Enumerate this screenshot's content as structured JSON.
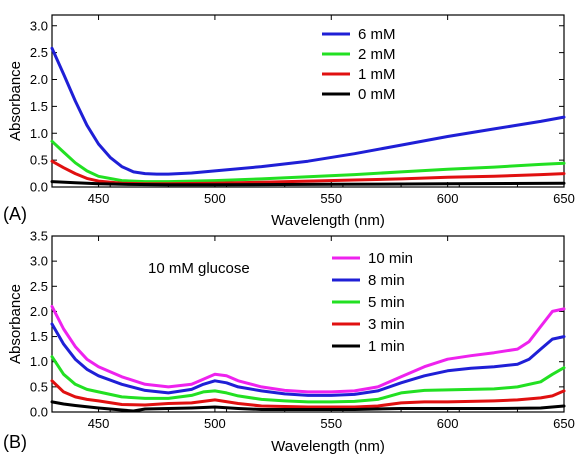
{
  "chart_data": [
    {
      "type": "line",
      "panel_label": "(A)",
      "xlabel": "Wavelength (nm)",
      "ylabel": "Absorbance",
      "xlim": [
        430,
        650
      ],
      "ylim": [
        0,
        3.2
      ],
      "xticks": [
        450,
        500,
        550,
        600,
        650
      ],
      "yticks": [
        0.0,
        0.5,
        1.0,
        1.5,
        2.0,
        2.5,
        3.0
      ],
      "ytick_labels": [
        "0.0",
        "0.5",
        "1.0",
        "1.5",
        "2.0",
        "2.5",
        "3.0"
      ],
      "legend_position": "top-right",
      "series": [
        {
          "name": "6 mM",
          "color": "#1f1fd6",
          "x": [
            430,
            435,
            440,
            445,
            450,
            455,
            460,
            465,
            470,
            475,
            480,
            490,
            500,
            520,
            540,
            560,
            580,
            600,
            620,
            640,
            650
          ],
          "y": [
            2.58,
            2.1,
            1.6,
            1.15,
            0.8,
            0.55,
            0.38,
            0.28,
            0.25,
            0.24,
            0.24,
            0.26,
            0.3,
            0.38,
            0.48,
            0.62,
            0.78,
            0.94,
            1.08,
            1.22,
            1.3
          ]
        },
        {
          "name": "2 mM",
          "color": "#22e022",
          "x": [
            430,
            435,
            440,
            445,
            450,
            460,
            470,
            480,
            500,
            520,
            540,
            560,
            580,
            600,
            620,
            640,
            650
          ],
          "y": [
            0.85,
            0.65,
            0.45,
            0.3,
            0.2,
            0.12,
            0.1,
            0.1,
            0.12,
            0.15,
            0.19,
            0.23,
            0.28,
            0.33,
            0.37,
            0.42,
            0.44
          ]
        },
        {
          "name": "1 mM",
          "color": "#e01010",
          "x": [
            430,
            435,
            440,
            445,
            450,
            460,
            470,
            480,
            500,
            520,
            540,
            560,
            580,
            600,
            620,
            640,
            650
          ],
          "y": [
            0.48,
            0.36,
            0.25,
            0.16,
            0.11,
            0.07,
            0.06,
            0.06,
            0.07,
            0.09,
            0.11,
            0.13,
            0.15,
            0.18,
            0.2,
            0.23,
            0.25
          ]
        },
        {
          "name": "0 mM",
          "color": "#000000",
          "x": [
            430,
            440,
            450,
            460,
            480,
            500,
            550,
            600,
            650
          ],
          "y": [
            0.1,
            0.08,
            0.06,
            0.05,
            0.04,
            0.04,
            0.05,
            0.06,
            0.07
          ]
        }
      ]
    },
    {
      "type": "line",
      "panel_label": "(B)",
      "annotation": "10 mM glucose",
      "xlabel": "Wavelength (nm)",
      "ylabel": "Absorbance",
      "xlim": [
        430,
        650
      ],
      "ylim": [
        0,
        3.5
      ],
      "xticks": [
        450,
        500,
        550,
        600,
        650
      ],
      "yticks": [
        0.0,
        0.5,
        1.0,
        1.5,
        2.0,
        2.5,
        3.0,
        3.5
      ],
      "ytick_labels": [
        "0.0",
        "0.5",
        "1.0",
        "1.5",
        "2.0",
        "2.5",
        "3.0",
        "3.5"
      ],
      "legend_position": "top-right",
      "series": [
        {
          "name": "10 min",
          "color": "#ee22ee",
          "x": [
            430,
            435,
            440,
            445,
            450,
            460,
            470,
            480,
            490,
            495,
            500,
            505,
            510,
            520,
            530,
            540,
            550,
            560,
            570,
            580,
            590,
            600,
            610,
            620,
            630,
            635,
            640,
            645,
            650
          ],
          "y": [
            2.1,
            1.65,
            1.3,
            1.05,
            0.9,
            0.7,
            0.55,
            0.5,
            0.55,
            0.65,
            0.75,
            0.72,
            0.62,
            0.5,
            0.43,
            0.4,
            0.4,
            0.42,
            0.5,
            0.7,
            0.9,
            1.05,
            1.12,
            1.18,
            1.25,
            1.4,
            1.7,
            2.0,
            2.05
          ]
        },
        {
          "name": "8 min",
          "color": "#1f1fd6",
          "x": [
            430,
            435,
            440,
            445,
            450,
            460,
            470,
            480,
            490,
            495,
            500,
            505,
            510,
            520,
            530,
            540,
            550,
            560,
            570,
            580,
            590,
            600,
            610,
            620,
            630,
            635,
            640,
            645,
            650
          ],
          "y": [
            1.75,
            1.35,
            1.05,
            0.85,
            0.72,
            0.55,
            0.43,
            0.38,
            0.45,
            0.55,
            0.62,
            0.58,
            0.5,
            0.42,
            0.36,
            0.33,
            0.33,
            0.35,
            0.42,
            0.58,
            0.72,
            0.82,
            0.87,
            0.9,
            0.95,
            1.05,
            1.25,
            1.45,
            1.5
          ]
        },
        {
          "name": "5 min",
          "color": "#22e022",
          "x": [
            430,
            435,
            440,
            445,
            450,
            460,
            470,
            480,
            490,
            495,
            500,
            505,
            510,
            520,
            530,
            540,
            550,
            560,
            570,
            580,
            590,
            600,
            610,
            620,
            630,
            640,
            645,
            650
          ],
          "y": [
            1.1,
            0.75,
            0.55,
            0.45,
            0.4,
            0.3,
            0.27,
            0.27,
            0.33,
            0.4,
            0.42,
            0.38,
            0.32,
            0.25,
            0.22,
            0.2,
            0.2,
            0.21,
            0.25,
            0.38,
            0.43,
            0.44,
            0.45,
            0.46,
            0.5,
            0.6,
            0.75,
            0.88
          ]
        },
        {
          "name": "3 min",
          "color": "#e01010",
          "x": [
            430,
            435,
            440,
            445,
            450,
            460,
            470,
            480,
            490,
            500,
            510,
            520,
            540,
            560,
            570,
            580,
            590,
            600,
            620,
            630,
            640,
            645,
            650
          ],
          "y": [
            0.62,
            0.4,
            0.3,
            0.25,
            0.22,
            0.15,
            0.14,
            0.17,
            0.18,
            0.24,
            0.17,
            0.12,
            0.1,
            0.1,
            0.12,
            0.18,
            0.2,
            0.2,
            0.22,
            0.24,
            0.28,
            0.32,
            0.42
          ]
        },
        {
          "name": "1 min",
          "color": "#000000",
          "x": [
            430,
            435,
            440,
            450,
            460,
            465,
            470,
            480,
            490,
            500,
            510,
            520,
            540,
            560,
            580,
            600,
            620,
            640,
            650
          ],
          "y": [
            0.2,
            0.16,
            0.13,
            0.08,
            0.04,
            0.02,
            0.06,
            0.07,
            0.08,
            0.1,
            0.07,
            0.05,
            0.05,
            0.05,
            0.07,
            0.07,
            0.07,
            0.08,
            0.12
          ]
        }
      ]
    }
  ]
}
